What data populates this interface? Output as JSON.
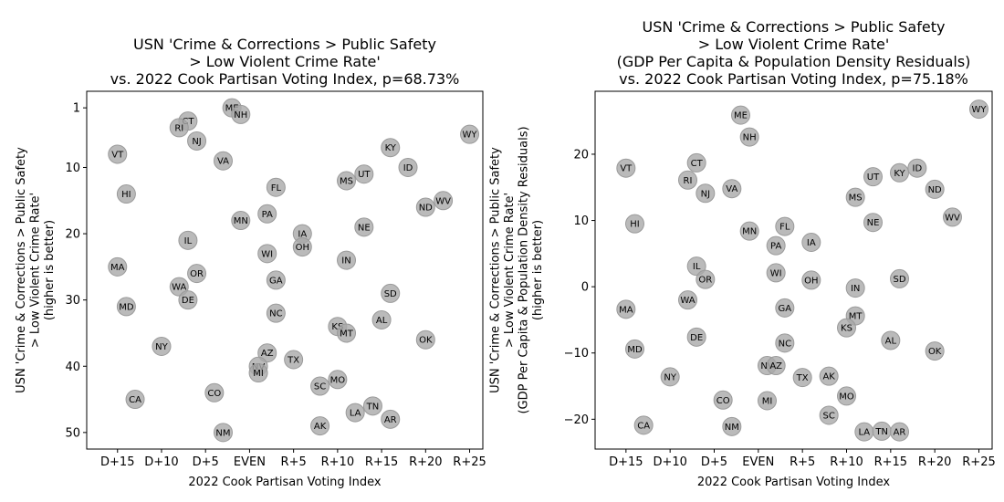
{
  "chart_data": [
    {
      "type": "scatter",
      "title_lines": [
        "USN 'Crime & Corrections > Public Safety",
        "> Low Violent Crime Rate'",
        "vs. 2022 Cook Partisan Voting Index, p=68.73%"
      ],
      "xlabel": "2022 Cook Partisan Voting Index",
      "ylabel_lines": [
        "USN 'Crime & Corrections > Public Safety",
        "> Low Violent Crime Rate'",
        "(higher is better)"
      ],
      "xlim": [
        -18.5,
        26.5
      ],
      "ylim": [
        52.5,
        -1.5
      ],
      "xticks": [
        -15,
        -10,
        -5,
        0,
        5,
        10,
        15,
        20,
        25
      ],
      "xtick_labels": [
        "D+15",
        "D+10",
        "D+5",
        "EVEN",
        "R+5",
        "R+10",
        "R+15",
        "R+20",
        "R+25"
      ],
      "yticks": [
        1,
        10,
        20,
        30,
        40,
        50
      ],
      "ytick_labels": [
        "1",
        "10",
        "20",
        "30",
        "40",
        "50"
      ],
      "points": [
        {
          "label": "ME",
          "x": -2,
          "y": 1
        },
        {
          "label": "NH",
          "x": -1,
          "y": 2
        },
        {
          "label": "CT",
          "x": -7,
          "y": 3
        },
        {
          "label": "RI",
          "x": -8,
          "y": 4
        },
        {
          "label": "WY",
          "x": 25,
          "y": 5
        },
        {
          "label": "NJ",
          "x": -6,
          "y": 6
        },
        {
          "label": "KY",
          "x": 16,
          "y": 7
        },
        {
          "label": "VT",
          "x": -15,
          "y": 8
        },
        {
          "label": "VA",
          "x": -3,
          "y": 9
        },
        {
          "label": "ID",
          "x": 18,
          "y": 10
        },
        {
          "label": "UT",
          "x": 13,
          "y": 11
        },
        {
          "label": "MS",
          "x": 11,
          "y": 12
        },
        {
          "label": "FL",
          "x": 3,
          "y": 13
        },
        {
          "label": "HI",
          "x": -14,
          "y": 14
        },
        {
          "label": "WV",
          "x": 22,
          "y": 15
        },
        {
          "label": "ND",
          "x": 20,
          "y": 16
        },
        {
          "label": "PA",
          "x": 2,
          "y": 17
        },
        {
          "label": "MN",
          "x": -1,
          "y": 18
        },
        {
          "label": "NE",
          "x": 13,
          "y": 19
        },
        {
          "label": "IA",
          "x": 6,
          "y": 20
        },
        {
          "label": "IL",
          "x": -7,
          "y": 21
        },
        {
          "label": "OH",
          "x": 6,
          "y": 22
        },
        {
          "label": "WI",
          "x": 2,
          "y": 23
        },
        {
          "label": "IN",
          "x": 11,
          "y": 24
        },
        {
          "label": "MA",
          "x": -15,
          "y": 25
        },
        {
          "label": "OR",
          "x": -6,
          "y": 26
        },
        {
          "label": "GA",
          "x": 3,
          "y": 27
        },
        {
          "label": "WA",
          "x": -8,
          "y": 28
        },
        {
          "label": "SD",
          "x": 16,
          "y": 29
        },
        {
          "label": "DE",
          "x": -7,
          "y": 30
        },
        {
          "label": "MD",
          "x": -14,
          "y": 31
        },
        {
          "label": "NC",
          "x": 3,
          "y": 32
        },
        {
          "label": "AL",
          "x": 15,
          "y": 33
        },
        {
          "label": "KS",
          "x": 10,
          "y": 34
        },
        {
          "label": "MT",
          "x": 11,
          "y": 35
        },
        {
          "label": "OK",
          "x": 20,
          "y": 36
        },
        {
          "label": "NY",
          "x": -10,
          "y": 37
        },
        {
          "label": "AZ",
          "x": 2,
          "y": 38
        },
        {
          "label": "TX",
          "x": 5,
          "y": 39
        },
        {
          "label": "NV",
          "x": 1,
          "y": 40
        },
        {
          "label": "MI",
          "x": 1,
          "y": 41
        },
        {
          "label": "MO",
          "x": 10,
          "y": 42
        },
        {
          "label": "SC",
          "x": 8,
          "y": 43
        },
        {
          "label": "CO",
          "x": -4,
          "y": 44
        },
        {
          "label": "CA",
          "x": -13,
          "y": 45
        },
        {
          "label": "TN",
          "x": 14,
          "y": 46
        },
        {
          "label": "LA",
          "x": 12,
          "y": 47
        },
        {
          "label": "AR",
          "x": 16,
          "y": 48
        },
        {
          "label": "AK",
          "x": 8,
          "y": 49
        },
        {
          "label": "NM",
          "x": -3,
          "y": 50
        }
      ]
    },
    {
      "type": "scatter",
      "title_lines": [
        "USN 'Crime & Corrections > Public Safety",
        "> Low Violent Crime Rate'",
        "(GDP Per Capita & Population Density Residuals)",
        "vs. 2022 Cook Partisan Voting Index, p=75.18%"
      ],
      "xlabel": "2022 Cook Partisan Voting Index",
      "ylabel_lines": [
        "USN 'Crime & Corrections > Public Safety",
        "> Low Violent Crime Rate'",
        "(GDP Per Capita & Population Density Residuals)",
        "(higher is better)"
      ],
      "xlim": [
        -18.5,
        26.5
      ],
      "ylim": [
        -24.5,
        29.5
      ],
      "xticks": [
        -15,
        -10,
        -5,
        0,
        5,
        10,
        15,
        20,
        25
      ],
      "xtick_labels": [
        "D+15",
        "D+10",
        "D+5",
        "EVEN",
        "R+5",
        "R+10",
        "R+15",
        "R+20",
        "R+25"
      ],
      "yticks": [
        20,
        10,
        0,
        -10,
        -20
      ],
      "ytick_labels": [
        "20",
        "10",
        "0",
        "−10",
        "−20"
      ],
      "points": [
        {
          "label": "WY",
          "x": 25,
          "y": 26.8
        },
        {
          "label": "ME",
          "x": -2,
          "y": 25.9
        },
        {
          "label": "NH",
          "x": -1,
          "y": 22.6
        },
        {
          "label": "UT",
          "x": 13,
          "y": 16.6
        },
        {
          "label": "KY",
          "x": 16,
          "y": 17.2
        },
        {
          "label": "ID",
          "x": 18,
          "y": 17.9
        },
        {
          "label": "CT",
          "x": -7,
          "y": 18.7
        },
        {
          "label": "VT",
          "x": -15,
          "y": 17.9
        },
        {
          "label": "RI",
          "x": -8,
          "y": 16.1
        },
        {
          "label": "VA",
          "x": -3,
          "y": 14.8
        },
        {
          "label": "ND",
          "x": 20,
          "y": 14.7
        },
        {
          "label": "NJ",
          "x": -6,
          "y": 14.1
        },
        {
          "label": "MS",
          "x": 11,
          "y": 13.5
        },
        {
          "label": "WV",
          "x": 22,
          "y": 10.5
        },
        {
          "label": "NE",
          "x": 13,
          "y": 9.7
        },
        {
          "label": "HI",
          "x": -14,
          "y": 9.5
        },
        {
          "label": "FL",
          "x": 3,
          "y": 9.1
        },
        {
          "label": "MN",
          "x": -1,
          "y": 8.4
        },
        {
          "label": "IA",
          "x": 6,
          "y": 6.7
        },
        {
          "label": "PA",
          "x": 2,
          "y": 6.2
        },
        {
          "label": "IL",
          "x": -7,
          "y": 3.1
        },
        {
          "label": "WI",
          "x": 2,
          "y": 2.1
        },
        {
          "label": "OR",
          "x": -6,
          "y": 1.1
        },
        {
          "label": "SD",
          "x": 16,
          "y": 1.2
        },
        {
          "label": "OH",
          "x": 6,
          "y": 1.0
        },
        {
          "label": "IN",
          "x": 11,
          "y": -0.2
        },
        {
          "label": "WA",
          "x": -8,
          "y": -2.0
        },
        {
          "label": "GA",
          "x": 3,
          "y": -3.2
        },
        {
          "label": "MA",
          "x": -15,
          "y": -3.4
        },
        {
          "label": "MT",
          "x": 11,
          "y": -4.4
        },
        {
          "label": "KS",
          "x": 10,
          "y": -6.2
        },
        {
          "label": "DE",
          "x": -7,
          "y": -7.6
        },
        {
          "label": "AL",
          "x": 15,
          "y": -8.1
        },
        {
          "label": "NC",
          "x": 3,
          "y": -8.5
        },
        {
          "label": "MD",
          "x": -14,
          "y": -9.4
        },
        {
          "label": "OK",
          "x": 20,
          "y": -9.7
        },
        {
          "label": "NV",
          "x": 1,
          "y": -11.9
        },
        {
          "label": "AZ",
          "x": 2,
          "y": -11.9
        },
        {
          "label": "NY",
          "x": -10,
          "y": -13.6
        },
        {
          "label": "TX",
          "x": 5,
          "y": -13.7
        },
        {
          "label": "AK",
          "x": 8,
          "y": -13.5
        },
        {
          "label": "MO",
          "x": 10,
          "y": -16.5
        },
        {
          "label": "CO",
          "x": -4,
          "y": -17.1
        },
        {
          "label": "MI",
          "x": 1,
          "y": -17.2
        },
        {
          "label": "SC",
          "x": 8,
          "y": -19.4
        },
        {
          "label": "CA",
          "x": -13,
          "y": -20.9
        },
        {
          "label": "NM",
          "x": -3,
          "y": -21.1
        },
        {
          "label": "LA",
          "x": 12,
          "y": -21.9
        },
        {
          "label": "TN",
          "x": 14,
          "y": -21.8
        },
        {
          "label": "AR",
          "x": 16,
          "y": -21.9
        }
      ]
    }
  ]
}
